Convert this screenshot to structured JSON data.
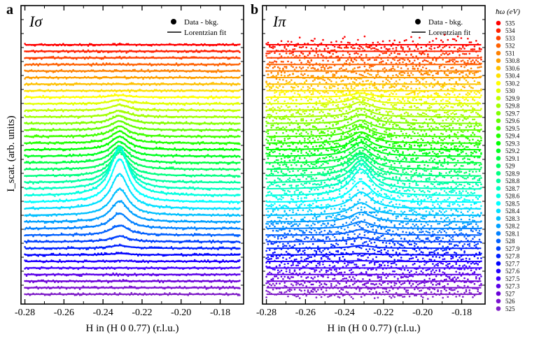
{
  "figure": {
    "xlabel": "H in (H 0 0.77) (r.l.u.)",
    "ylabel": "I_scat. (arb. units)",
    "legend": {
      "marker_label": "Data - bkg.",
      "line_label": "Lorentzian fit",
      "placement": "top-right"
    },
    "energy_legend_title": "ħω (eV)"
  },
  "chart_data": [
    {
      "type": "scatter",
      "panel_letter": "a",
      "panel_title": "Iσ",
      "x_range": [
        -0.282,
        -0.168
      ],
      "x_ticks": [
        -0.28,
        -0.26,
        -0.24,
        -0.22,
        -0.2,
        -0.18
      ],
      "x_tick_labels": [
        "-0.28",
        "-0.26",
        "-0.24",
        "-0.22",
        "-0.20",
        "-0.18"
      ],
      "peak_center": -0.2315,
      "peak_hwhm": 0.0055,
      "noise_amplitude": 0.8,
      "peak_heights": [
        0,
        0,
        0,
        0,
        0,
        0,
        0,
        0,
        3,
        6,
        8,
        9,
        11,
        13,
        15,
        17,
        19,
        21,
        24,
        28,
        34,
        44,
        58,
        70,
        62,
        50,
        38,
        30,
        22,
        14,
        8,
        4,
        2,
        1
      ]
    },
    {
      "type": "scatter",
      "panel_letter": "b",
      "panel_title": "Iπ",
      "x_range": [
        -0.282,
        -0.168
      ],
      "x_ticks": [
        -0.28,
        -0.26,
        -0.24,
        -0.22,
        -0.2,
        -0.18
      ],
      "x_tick_labels": [
        "-0.28",
        "-0.26",
        "-0.24",
        "-0.22",
        "-0.20",
        "-0.18"
      ],
      "peak_center": -0.2315,
      "peak_hwhm": 0.0065,
      "noise_amplitude": 3.0,
      "peak_heights": [
        0,
        0,
        0,
        0,
        0,
        0,
        0,
        0,
        6,
        10,
        12,
        12,
        13,
        14,
        15,
        16,
        18,
        20,
        22,
        24,
        28,
        32,
        36,
        38,
        30,
        24,
        18,
        14,
        10,
        8,
        6,
        4,
        2,
        1
      ]
    }
  ],
  "energies": [
    "535",
    "534",
    "533",
    "532",
    "531",
    "530.8",
    "530.6",
    "530.4",
    "530.2",
    "530",
    "529.9",
    "529.8",
    "529.7",
    "529.6",
    "529.5",
    "529.4",
    "529.3",
    "529.2",
    "529.1",
    "529",
    "528.9",
    "528.8",
    "528.7",
    "528.6",
    "528.5",
    "528.4",
    "528.3",
    "528.2",
    "528.1",
    "528",
    "527.9",
    "527.8",
    "527.7",
    "527.6",
    "527.5",
    "527.3",
    "527",
    "526",
    "525"
  ],
  "colors": [
    "#ff0000",
    "#ff2000",
    "#ff4000",
    "#ff6000",
    "#ff8000",
    "#ffa000",
    "#ffc000",
    "#ffe000",
    "#ffff00",
    "#e0ff00",
    "#c0ff00",
    "#a0ff00",
    "#80ff00",
    "#60ff00",
    "#40ff00",
    "#20ff00",
    "#00ff00",
    "#00ff20",
    "#00ff40",
    "#00ff60",
    "#00ff80",
    "#00ffa0",
    "#00ffc0",
    "#00ffe0",
    "#00ffff",
    "#00e0ff",
    "#00c0ff",
    "#00a0ff",
    "#0080ff",
    "#0060ff",
    "#0040ff",
    "#0020ff",
    "#0000ff",
    "#2000ff",
    "#4000ff",
    "#5a00e8",
    "#6a00d8",
    "#7a10d0",
    "#8020c8"
  ]
}
